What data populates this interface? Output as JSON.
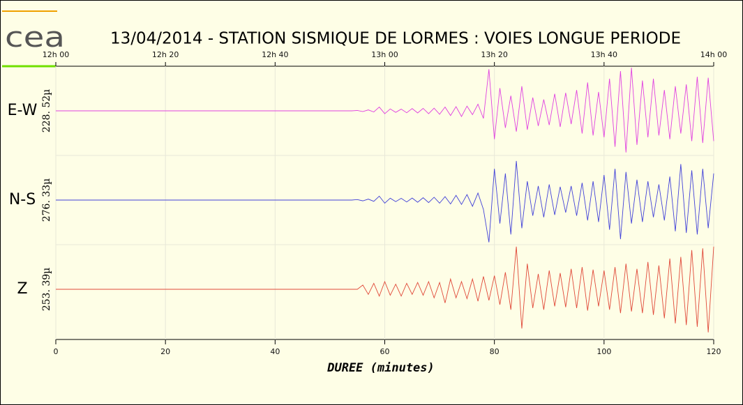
{
  "chart_data": {
    "type": "seismogram",
    "title": "13/04/2014  -  STATION SISMIQUE DE LORMES : VOIES LONGUE PERIODE",
    "logo": "cea",
    "x_label": "DUREE (minutes)",
    "xlim": [
      0,
      120
    ],
    "xticks": [
      0,
      20,
      40,
      60,
      80,
      100,
      120
    ],
    "top_ticks": [
      {
        "value": 0,
        "label": "12h 00"
      },
      {
        "value": 20,
        "label": "12h 20"
      },
      {
        "value": 40,
        "label": "12h 40"
      },
      {
        "value": 60,
        "label": "13h 00"
      },
      {
        "value": 80,
        "label": "13h 20"
      },
      {
        "value": 100,
        "label": "13h 40"
      },
      {
        "value": 120,
        "label": "14h 00"
      }
    ],
    "grid": true,
    "x": [
      0,
      1,
      2,
      3,
      4,
      5,
      6,
      7,
      8,
      9,
      10,
      11,
      12,
      13,
      14,
      15,
      16,
      17,
      18,
      19,
      20,
      21,
      22,
      23,
      24,
      25,
      26,
      27,
      28,
      29,
      30,
      31,
      32,
      33,
      34,
      35,
      36,
      37,
      38,
      39,
      40,
      41,
      42,
      43,
      44,
      45,
      46,
      47,
      48,
      49,
      50,
      51,
      52,
      53,
      54,
      55,
      56,
      57,
      58,
      59,
      60,
      61,
      62,
      63,
      64,
      65,
      66,
      67,
      68,
      69,
      70,
      71,
      72,
      73,
      74,
      75,
      76,
      77,
      78,
      79,
      80,
      81,
      82,
      83,
      84,
      85,
      86,
      87,
      88,
      89,
      90,
      91,
      92,
      93,
      94,
      95,
      96,
      97,
      98,
      99,
      100,
      101,
      102,
      103,
      104,
      105,
      106,
      107,
      108,
      109,
      110,
      111,
      112,
      113,
      114,
      115,
      116,
      117,
      118,
      119,
      120
    ],
    "series": [
      {
        "name": "E-W",
        "scale_label": "228. 52µ",
        "color": "#e040e0",
        "ylim": [
          -228.52,
          228.52
        ],
        "values": [
          0,
          0,
          0,
          0,
          0,
          0,
          0,
          0,
          0,
          0,
          0,
          0,
          0,
          0,
          0,
          0,
          0,
          0,
          0,
          0,
          0,
          0,
          0,
          0,
          0,
          0,
          0,
          0,
          0,
          0,
          0,
          0,
          0,
          0,
          0,
          0,
          0,
          0,
          0,
          0,
          0,
          0,
          0,
          0,
          0,
          0,
          0,
          0,
          0,
          0,
          0,
          0,
          0,
          0,
          0,
          2,
          -4,
          5,
          -6,
          20,
          -15,
          10,
          -8,
          9,
          -10,
          12,
          -11,
          13,
          -15,
          14,
          -18,
          20,
          -25,
          22,
          -30,
          25,
          -20,
          35,
          -40,
          220,
          -150,
          120,
          -90,
          80,
          -110,
          130,
          -100,
          70,
          -80,
          60,
          -75,
          90,
          -85,
          95,
          -70,
          110,
          -120,
          150,
          -130,
          100,
          -140,
          170,
          -190,
          210,
          -220,
          228,
          -180,
          160,
          -140,
          170,
          -130,
          110,
          -150,
          130,
          -120,
          140,
          -160,
          180,
          -170,
          175,
          -160
        ]
      },
      {
        "name": "N-S",
        "scale_label": "276. 33µ",
        "color": "#4040d8",
        "ylim": [
          -276.33,
          276.33
        ],
        "values": [
          0,
          0,
          0,
          0,
          0,
          0,
          0,
          0,
          0,
          0,
          0,
          0,
          0,
          0,
          0,
          0,
          0,
          0,
          0,
          0,
          0,
          0,
          0,
          0,
          0,
          0,
          0,
          0,
          0,
          0,
          0,
          0,
          0,
          0,
          0,
          0,
          0,
          0,
          0,
          0,
          0,
          0,
          0,
          0,
          0,
          0,
          0,
          0,
          0,
          0,
          0,
          0,
          0,
          0,
          0,
          3,
          -5,
          6,
          -8,
          25,
          -20,
          12,
          -10,
          11,
          -12,
          13,
          -14,
          15,
          -16,
          18,
          -20,
          22,
          -25,
          30,
          -28,
          35,
          -40,
          45,
          -60,
          -270,
          200,
          -150,
          170,
          -220,
          250,
          -180,
          120,
          -100,
          90,
          -110,
          100,
          -95,
          85,
          -80,
          90,
          -100,
          110,
          -130,
          120,
          -140,
          160,
          -190,
          200,
          -250,
          180,
          -150,
          130,
          -140,
          120,
          -110,
          100,
          -130,
          150,
          -200,
          230,
          -210,
          190,
          -220,
          200,
          -180,
          170
        ]
      },
      {
        "name": "Z",
        "scale_label": "253. 39µ",
        "color": "#e04838",
        "ylim": [
          -253.39,
          253.39
        ],
        "values": [
          0,
          0,
          0,
          0,
          0,
          0,
          0,
          0,
          0,
          0,
          0,
          0,
          0,
          0,
          0,
          0,
          0,
          0,
          0,
          0,
          0,
          0,
          0,
          0,
          0,
          0,
          0,
          0,
          0,
          0,
          0,
          0,
          0,
          0,
          0,
          0,
          0,
          0,
          0,
          0,
          0,
          0,
          0,
          0,
          0,
          0,
          0,
          0,
          0,
          0,
          0,
          0,
          0,
          0,
          0,
          0,
          25,
          -30,
          35,
          -40,
          45,
          -35,
          30,
          -40,
          35,
          -30,
          40,
          -35,
          45,
          -50,
          40,
          -80,
          60,
          -50,
          45,
          -55,
          60,
          -70,
          75,
          -65,
          80,
          -90,
          100,
          -120,
          250,
          -230,
          150,
          -110,
          90,
          -120,
          110,
          -100,
          95,
          -105,
          120,
          -110,
          130,
          -125,
          115,
          -100,
          110,
          -120,
          130,
          -140,
          150,
          -130,
          120,
          -140,
          160,
          -150,
          140,
          -170,
          180,
          -200,
          190,
          -210,
          230,
          -220,
          240,
          -253,
          250
        ]
      }
    ]
  }
}
